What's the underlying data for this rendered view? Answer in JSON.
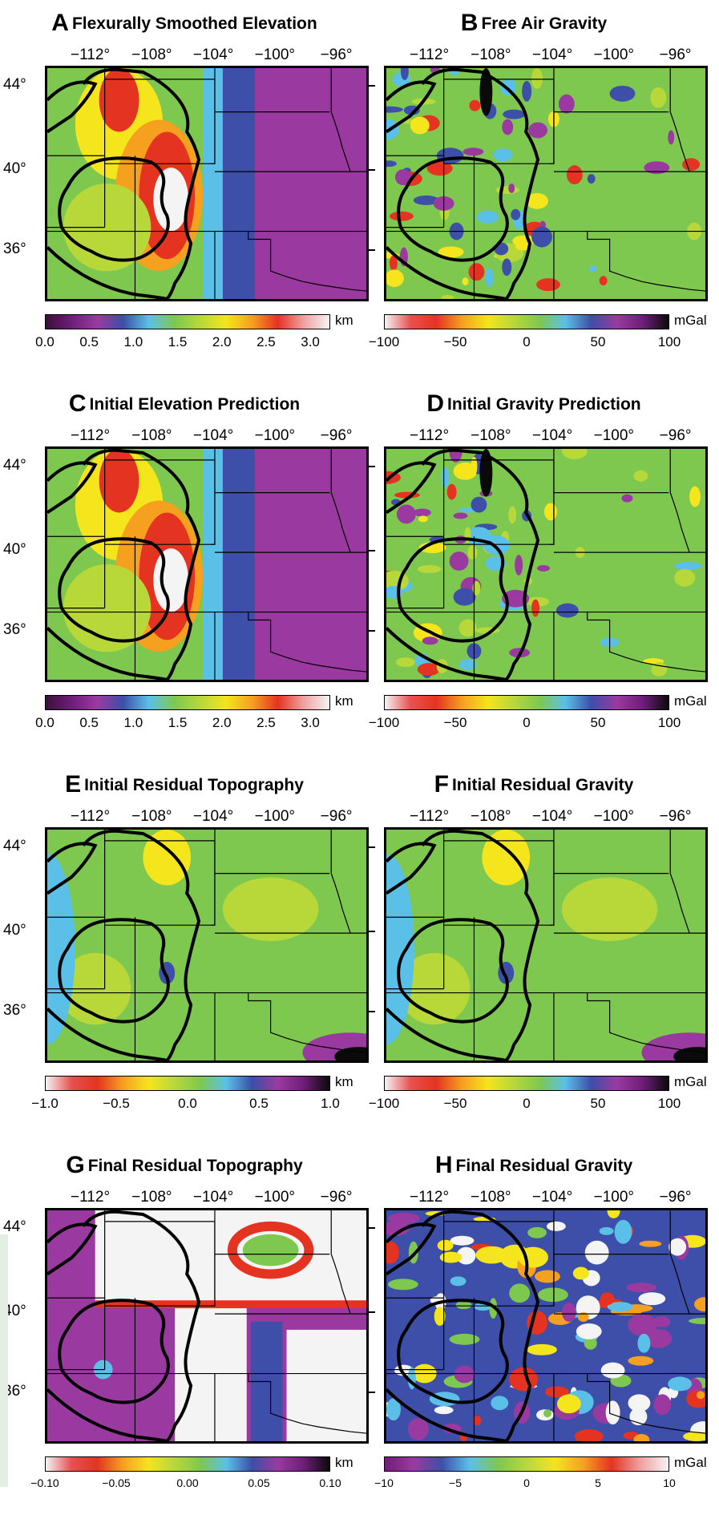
{
  "colors": {
    "elev": [
      "#3a0f3a",
      "#6e1e78",
      "#9a3aa0",
      "#3d4fa8",
      "#5bc0e8",
      "#7ec850",
      "#b8d83a",
      "#f4e51c",
      "#f6a020",
      "#e53322",
      "#f0a0a0",
      "#f4f4f4"
    ],
    "grav": [
      "#f4f4f4",
      "#e85050",
      "#e53322",
      "#f6a020",
      "#f4e51c",
      "#b8d83a",
      "#7ec850",
      "#5bc0e8",
      "#3d4fa8",
      "#9a3aa0",
      "#6e1e78",
      "#0a0a0a"
    ],
    "resid": [
      "#f4f4f4",
      "#e85050",
      "#e53322",
      "#f6a020",
      "#f4e51c",
      "#b8d83a",
      "#7ec850",
      "#5bc0e8",
      "#3d4fa8",
      "#9a3aa0",
      "#6e1e78",
      "#0a0a0a"
    ],
    "final_grav": [
      "#6e1e78",
      "#9a3aa0",
      "#3d4fa8",
      "#5bc0e8",
      "#7ec850",
      "#b8d83a",
      "#f4e51c",
      "#f6a020",
      "#e53322",
      "#f0a0a0",
      "#f4f4f4"
    ]
  },
  "lon_labels": [
    "−112°",
    "−108°",
    "−104°",
    "−100°",
    "−96°"
  ],
  "lat_labels": [
    "44°",
    "40°",
    "36°"
  ],
  "panels": [
    {
      "letter": "A",
      "title": "Flexurally Smoothed Elevation",
      "unit": "km",
      "ticks": [
        "0.0",
        "0.5",
        "1.0",
        "1.5",
        "2.0",
        "2.5",
        "3.0"
      ],
      "scale": "elev"
    },
    {
      "letter": "B",
      "title": "Free Air Gravity",
      "unit": "mGal",
      "ticks": [
        "−100",
        "−50",
        "0",
        "50",
        "100"
      ],
      "scale": "grav"
    },
    {
      "letter": "C",
      "title": "Initial Elevation Prediction",
      "unit": "km",
      "ticks": [
        "0.0",
        "0.5",
        "1.0",
        "1.5",
        "2.0",
        "2.5",
        "3.0"
      ],
      "scale": "elev"
    },
    {
      "letter": "D",
      "title": "Initial Gravity Prediction",
      "unit": "mGal",
      "ticks": [
        "−100",
        "−50",
        "0",
        "50",
        "100"
      ],
      "scale": "grav"
    },
    {
      "letter": "E",
      "title": "Initial Residual Topography",
      "unit": "km",
      "ticks": [
        "−1.0",
        "−0.5",
        "0.0",
        "0.5",
        "1.0"
      ],
      "scale": "resid"
    },
    {
      "letter": "F",
      "title": "Initial Residual Gravity",
      "unit": "mGal",
      "ticks": [
        "−100",
        "−50",
        "0",
        "50",
        "100"
      ],
      "scale": "resid"
    },
    {
      "letter": "G",
      "title": "Final Residual Topography",
      "unit": "km",
      "ticks": [
        "−0.10",
        "−0.05",
        "0.00",
        "0.05",
        "0.10"
      ],
      "scale": "resid"
    },
    {
      "letter": "H",
      "title": "Final Residual Gravity",
      "unit": "mGal",
      "ticks": [
        "−10",
        "−5",
        "0",
        "5",
        "10"
      ],
      "scale": "final_grav"
    }
  ]
}
